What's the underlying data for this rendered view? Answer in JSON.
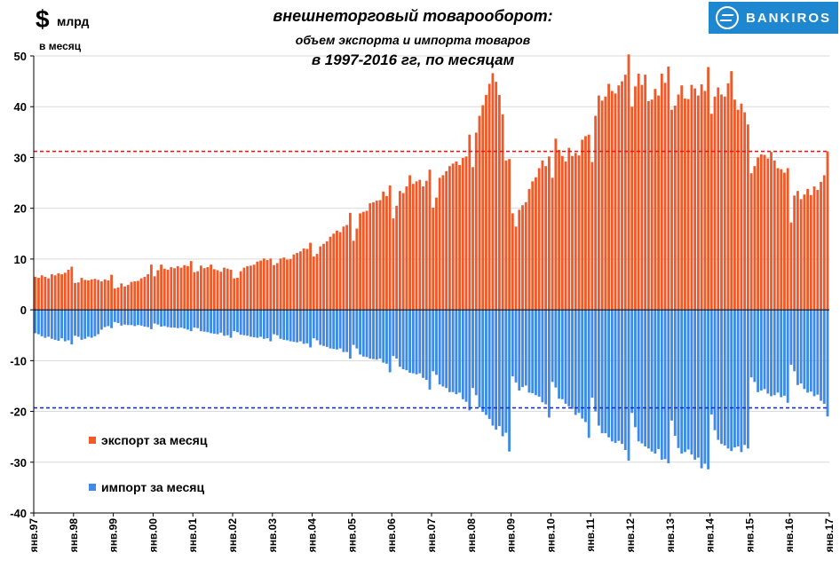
{
  "header": {
    "unit_symbol": "$",
    "unit_word": "млрд",
    "unit_period": "в месяц",
    "title_line1": "внешнеторговый товарооборот:",
    "title_line2": "объем экспорта и импорта товаров",
    "title_line3": "в 1997-2016 гг, по месяцам",
    "logo_text": "BANKIROS"
  },
  "legend": {
    "export_label": "экспорт за месяц",
    "import_label": "импорт за месяц"
  },
  "colors": {
    "export": "#f05a2a",
    "import": "#3d8ae8",
    "export_ref_line": "#e11b1b",
    "import_ref_line": "#1a2fd0",
    "brand": "#1f87cf"
  },
  "chart_data": {
    "type": "bar",
    "x_start": "1997-01",
    "x_end": "2017-01",
    "ylim": [
      -40,
      50
    ],
    "yticks": [
      50,
      40,
      30,
      20,
      10,
      0,
      -10,
      -20,
      -30,
      -40
    ],
    "xticks": [
      "янв.97",
      "янв.98",
      "янв.99",
      "янв.00",
      "янв.01",
      "янв.02",
      "янв.03",
      "янв.04",
      "янв.05",
      "янв.06",
      "янв.07",
      "янв.08",
      "янв.09",
      "янв.10",
      "янв.11",
      "янв.12",
      "янв.13",
      "янв.14",
      "янв.15",
      "янв.16",
      "янв.17"
    ],
    "grid": true,
    "legend_position": "bottom-left",
    "reference_lines": [
      {
        "series": "export",
        "value": 31.2,
        "style": "dashed"
      },
      {
        "series": "import",
        "value": -19.3,
        "style": "dashed"
      }
    ],
    "series": [
      {
        "name": "экспорт за месяц",
        "annual_monthly_values": {
          "1997": [
            6.5,
            6.3,
            6.8,
            6.5,
            6.2,
            7.0,
            6.8,
            7.2,
            7.0,
            7.3,
            7.9,
            8.5
          ],
          "1998": [
            5.3,
            5.4,
            6.3,
            5.9,
            5.8,
            6.0,
            6.1,
            5.9,
            5.6,
            6.0,
            5.8,
            6.9
          ],
          "1999": [
            4.2,
            4.4,
            5.2,
            4.6,
            4.9,
            5.5,
            5.6,
            5.7,
            6.2,
            6.5,
            7.0,
            8.9
          ],
          "2000": [
            6.6,
            7.8,
            8.9,
            8.1,
            7.9,
            8.4,
            8.2,
            8.6,
            8.3,
            8.8,
            8.6,
            9.6
          ],
          "2001": [
            7.4,
            7.6,
            8.7,
            8.2,
            8.4,
            8.9,
            8.0,
            7.8,
            7.5,
            8.3,
            8.1,
            7.9
          ],
          "2002": [
            6.2,
            6.3,
            7.6,
            8.3,
            8.6,
            8.7,
            8.9,
            9.5,
            9.7,
            10.1,
            9.8,
            10.1
          ],
          "2003": [
            8.8,
            9.2,
            10.1,
            10.3,
            9.9,
            10.0,
            10.9,
            11.2,
            11.5,
            12.1,
            12.0,
            13.2
          ],
          "2004": [
            10.5,
            11.0,
            12.5,
            13.0,
            13.5,
            14.4,
            15.0,
            15.6,
            15.3,
            16.4,
            16.7,
            19.1
          ],
          "2005": [
            13.6,
            16.0,
            19.0,
            19.3,
            19.5,
            21.0,
            21.2,
            21.5,
            21.6,
            23.3,
            22.4,
            24.5
          ],
          "2006": [
            18.0,
            20.5,
            23.4,
            23.0,
            24.3,
            26.5,
            24.8,
            25.3,
            25.6,
            24.3,
            25.4,
            27.6
          ],
          "2007": [
            20.1,
            22.1,
            26.0,
            26.5,
            27.3,
            28.3,
            28.8,
            29.2,
            28.5,
            29.9,
            30.2,
            34.5
          ],
          "2008": [
            28.1,
            34.9,
            38.2,
            40.3,
            42.3,
            44.5,
            46.6,
            44.9,
            42.3,
            38.5,
            29.4,
            29.7
          ],
          "2009": [
            19.0,
            16.4,
            19.7,
            20.6,
            21.2,
            23.8,
            25.3,
            26.1,
            27.9,
            29.4,
            28.3,
            30.2
          ],
          "2010": [
            26.0,
            33.7,
            31.5,
            30.3,
            29.2,
            31.9,
            30.3,
            30.9,
            30.4,
            33.5,
            34.2,
            34.5
          ],
          "2011": [
            29.1,
            38.2,
            42.2,
            41.2,
            42.0,
            44.5,
            43.1,
            42.6,
            44.2,
            45.0,
            46.3,
            50.3
          ],
          "2012": [
            40.0,
            44.0,
            46.5,
            44.3,
            46.3,
            41.1,
            41.4,
            43.5,
            42.2,
            46.5,
            44.7,
            47.9
          ],
          "2013": [
            39.4,
            40.2,
            42.4,
            44.2,
            41.6,
            41.5,
            44.3,
            43.6,
            42.2,
            44.4,
            43.1,
            47.8
          ],
          "2014": [
            38.6,
            42.0,
            43.8,
            42.4,
            42.0,
            44.6,
            47.0,
            41.4,
            39.4,
            40.6,
            38.9,
            36.5
          ],
          "2015": [
            26.9,
            28.3,
            30.0,
            30.6,
            30.5,
            29.8,
            31.1,
            29.4,
            27.9,
            27.7,
            27.0,
            27.9
          ],
          "2016": [
            17.2,
            22.5,
            23.4,
            21.8,
            22.7,
            23.8,
            22.6,
            24.3,
            23.6,
            25.2,
            26.5,
            31.2
          ]
        }
      },
      {
        "name": "импорт за месяц",
        "annual_monthly_values": {
          "1997": [
            -4.6,
            -4.8,
            -5.2,
            -5.5,
            -5.3,
            -5.7,
            -5.9,
            -6.1,
            -5.6,
            -6.2,
            -6.0,
            -6.8
          ],
          "1998": [
            -5.1,
            -5.3,
            -5.9,
            -5.7,
            -5.3,
            -5.5,
            -5.2,
            -4.8,
            -3.9,
            -3.4,
            -3.2,
            -3.6
          ],
          "1999": [
            -2.4,
            -2.6,
            -3.1,
            -2.9,
            -3.0,
            -3.0,
            -3.2,
            -3.0,
            -3.1,
            -3.3,
            -3.4,
            -3.8
          ],
          "2000": [
            -2.7,
            -2.9,
            -3.3,
            -3.2,
            -3.4,
            -3.5,
            -3.5,
            -3.6,
            -3.5,
            -3.7,
            -3.9,
            -4.2
          ],
          "2001": [
            -3.5,
            -3.6,
            -4.2,
            -4.3,
            -4.4,
            -4.6,
            -4.7,
            -4.8,
            -4.5,
            -5.1,
            -5.0,
            -5.5
          ],
          "2002": [
            -4.2,
            -4.4,
            -4.9,
            -5.0,
            -5.1,
            -5.3,
            -5.4,
            -5.5,
            -5.3,
            -5.7,
            -5.6,
            -6.2
          ],
          "2003": [
            -4.8,
            -5.0,
            -5.7,
            -5.9,
            -6.0,
            -6.2,
            -6.3,
            -6.4,
            -6.2,
            -6.7,
            -6.6,
            -7.4
          ],
          "2004": [
            -5.6,
            -6.0,
            -6.9,
            -7.1,
            -7.3,
            -7.6,
            -7.7,
            -7.8,
            -7.6,
            -8.3,
            -8.3,
            -9.6
          ],
          "2005": [
            -6.9,
            -7.6,
            -8.8,
            -9.2,
            -9.3,
            -9.6,
            -9.7,
            -9.8,
            -9.6,
            -10.4,
            -10.6,
            -12.3
          ],
          "2006": [
            -9.1,
            -9.6,
            -11.2,
            -11.7,
            -11.9,
            -12.4,
            -12.5,
            -12.7,
            -12.5,
            -13.4,
            -13.8,
            -15.7
          ],
          "2007": [
            -12.1,
            -12.8,
            -14.7,
            -15.1,
            -15.4,
            -16.2,
            -16.2,
            -16.6,
            -16.3,
            -17.6,
            -18.1,
            -19.8
          ],
          "2008": [
            -15.4,
            -16.8,
            -19.2,
            -20.1,
            -20.7,
            -21.5,
            -22.8,
            -23.6,
            -22.9,
            -24.9,
            -24.2,
            -27.9
          ],
          "2009": [
            -13.1,
            -14.3,
            -15.9,
            -15.2,
            -14.9,
            -16.3,
            -16.4,
            -16.8,
            -17.1,
            -18.2,
            -18.6,
            -21.2
          ],
          "2010": [
            -14.2,
            -15.3,
            -17.5,
            -17.6,
            -18.5,
            -19.0,
            -19.5,
            -20.7,
            -20.3,
            -21.4,
            -22.1,
            -25.2
          ],
          "2011": [
            -17.3,
            -20.0,
            -22.8,
            -24.3,
            -24.3,
            -25.1,
            -25.9,
            -26.2,
            -25.8,
            -26.4,
            -27.6,
            -29.7
          ],
          "2012": [
            -20.3,
            -23.1,
            -25.9,
            -26.3,
            -26.9,
            -27.3,
            -27.9,
            -28.3,
            -27.4,
            -29.5,
            -29.4,
            -30.2
          ],
          "2013": [
            -21.8,
            -24.8,
            -27.2,
            -28.3,
            -28.0,
            -27.5,
            -28.5,
            -29.5,
            -29.1,
            -31.2,
            -30.3,
            -31.4
          ],
          "2014": [
            -20.6,
            -23.7,
            -25.6,
            -26.4,
            -26.7,
            -27.3,
            -27.8,
            -27.1,
            -26.9,
            -28.0,
            -26.6,
            -27.3
          ],
          "2015": [
            -13.3,
            -14.2,
            -16.2,
            -15.9,
            -15.6,
            -16.5,
            -17.0,
            -16.8,
            -16.3,
            -17.2,
            -16.9,
            -18.3
          ],
          "2016": [
            -10.8,
            -12.1,
            -14.8,
            -14.5,
            -15.6,
            -16.3,
            -16.1,
            -17.0,
            -16.7,
            -17.9,
            -18.5,
            -21.0
          ]
        }
      }
    ]
  }
}
